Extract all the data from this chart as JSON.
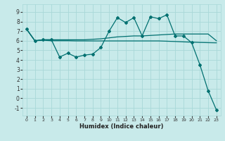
{
  "xlabel": "Humidex (Indice chaleur)",
  "bg_color": "#c8eaea",
  "line_color": "#007070",
  "grid_color": "#a8d8d8",
  "xlim": [
    -0.5,
    23.5
  ],
  "ylim": [
    -1.8,
    9.8
  ],
  "xticks": [
    0,
    1,
    2,
    3,
    4,
    5,
    6,
    7,
    8,
    9,
    10,
    11,
    12,
    13,
    14,
    15,
    16,
    17,
    18,
    19,
    20,
    21,
    22,
    23
  ],
  "yticks": [
    -1,
    0,
    1,
    2,
    3,
    4,
    5,
    6,
    7,
    8,
    9
  ],
  "line1_x": [
    0,
    1,
    2,
    3,
    4,
    5,
    6,
    7,
    8,
    9,
    10,
    11,
    12,
    13,
    14,
    15,
    16,
    17,
    18,
    19,
    20,
    21,
    22,
    23
  ],
  "line1_y": [
    7.2,
    6.0,
    6.1,
    6.1,
    4.3,
    4.7,
    4.3,
    4.5,
    4.6,
    5.3,
    7.0,
    8.4,
    7.9,
    8.4,
    6.5,
    8.5,
    8.3,
    8.7,
    6.5,
    6.5,
    5.8,
    3.5,
    0.8,
    -1.2
  ],
  "line2_x": [
    0,
    1,
    2,
    3,
    4,
    5,
    6,
    7,
    8,
    9,
    10,
    11,
    12,
    13,
    14,
    15,
    16,
    17,
    18,
    19,
    20,
    21,
    22,
    23
  ],
  "line2_y": [
    7.2,
    6.0,
    6.1,
    6.1,
    6.1,
    6.1,
    6.1,
    6.1,
    6.15,
    6.2,
    6.3,
    6.4,
    6.45,
    6.5,
    6.5,
    6.55,
    6.6,
    6.65,
    6.7,
    6.7,
    6.7,
    6.7,
    6.7,
    6.0
  ],
  "line3_x": [
    0,
    1,
    2,
    3,
    4,
    5,
    6,
    7,
    8,
    9,
    10,
    11,
    12,
    13,
    14,
    15,
    16,
    17,
    18,
    19,
    20,
    21,
    22,
    23
  ],
  "line3_y": [
    7.2,
    6.0,
    6.05,
    6.0,
    6.0,
    6.0,
    5.98,
    5.98,
    5.98,
    5.98,
    5.98,
    5.98,
    5.98,
    5.98,
    5.98,
    5.98,
    5.98,
    5.95,
    5.92,
    5.88,
    5.85,
    5.82,
    5.8,
    5.78
  ]
}
